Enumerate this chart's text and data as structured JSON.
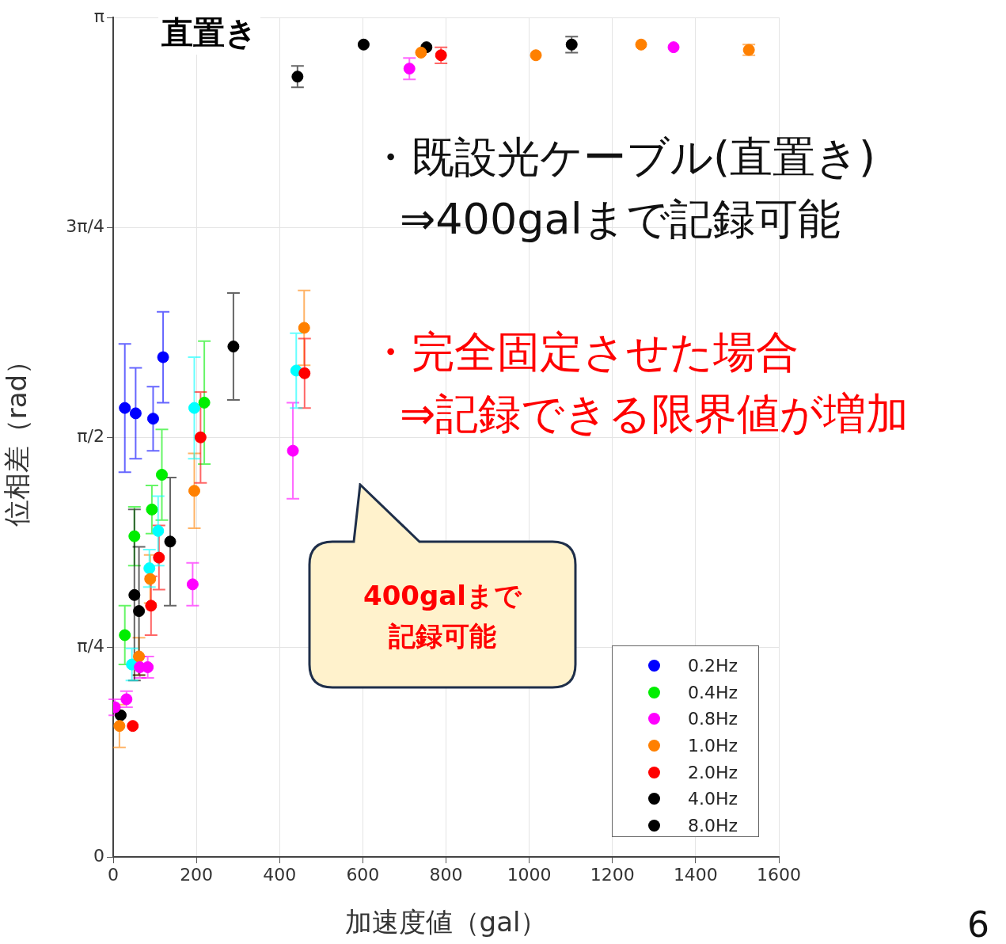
{
  "chart_data": {
    "type": "scatter",
    "title": "直置き",
    "xlabel": "加速度値（gal）",
    "ylabel": "位相差（rad）",
    "xlim": [
      0,
      1600
    ],
    "xticks": [
      0,
      200,
      400,
      600,
      800,
      1000,
      1200,
      1400,
      1600
    ],
    "ylim": [
      0,
      3.1416
    ],
    "yticks": [
      0,
      {
        "value": 0.7854,
        "label": "π/4"
      },
      {
        "value": 1.5708,
        "label": "π/2"
      },
      {
        "value": 2.3562,
        "label": "3π/4"
      },
      {
        "value": 3.1416,
        "label": "π"
      }
    ],
    "grid": true,
    "legend": "bottom right",
    "marker": "circle",
    "annotations": [
      "・既設光ケーブル(直置き)",
      "⇒400galまで記録可能",
      "・完全固定させた場合",
      "⇒記録できる限界値が増加",
      "400galまで",
      "記録可能",
      "6"
    ],
    "series": [
      {
        "name": "0.2Hz",
        "color": "#0000ff",
        "x": [
          28,
          54,
          96,
          120
        ],
        "values": [
          1.68,
          1.66,
          1.64,
          1.87
        ],
        "errors": [
          0.24,
          0.17,
          0.12,
          0.17
        ]
      },
      {
        "name": "0.4Hz",
        "color": "#00ee00",
        "x": [
          28,
          51,
          93,
          117,
          219
        ],
        "values": [
          0.83,
          1.2,
          1.3,
          1.43,
          1.7
        ],
        "errors": [
          0.11,
          0.11,
          0.09,
          0.17,
          0.23
        ]
      },
      {
        "name": "0.8Hz",
        "color": "#ff00ff",
        "x": [
          4,
          32,
          64,
          83,
          191,
          432,
          712,
          1347
        ],
        "values": [
          0.56,
          0.59,
          0.71,
          0.71,
          1.02,
          1.52,
          2.95,
          3.03
        ],
        "errors": [
          0.03,
          0.03,
          0.04,
          0.04,
          0.08,
          0.18,
          0.04,
          null
        ]
      },
      {
        "name": "1.0Hz",
        "color": "#ff8000",
        "x": [
          15,
          62,
          89,
          195,
          459,
          740,
          1016,
          1269,
          1528
        ],
        "values": [
          0.49,
          0.75,
          1.04,
          1.37,
          1.98,
          3.01,
          3.0,
          3.04,
          3.02
        ],
        "errors": [
          0.08,
          0.07,
          0.09,
          0.14,
          0.14,
          null,
          null,
          null,
          0.02
        ]
      },
      {
        "name": "2.0Hz",
        "color": "#ff0000",
        "x": [
          47,
          91,
          110,
          210,
          460,
          788
        ],
        "values": [
          0.49,
          0.94,
          1.12,
          1.57,
          1.81,
          3.0
        ],
        "errors": [
          null,
          0.11,
          0.12,
          0.17,
          0.13,
          0.03
        ]
      },
      {
        "name": "4.0Hz",
        "color": "#000000",
        "x": [
          18,
          51,
          137,
          443,
          753
        ],
        "values": [
          0.53,
          0.98,
          1.18,
          2.92,
          3.03
        ],
        "errors": [
          null,
          0.32,
          0.24,
          0.04,
          null
        ]
      },
      {
        "name": "8.0Hz",
        "color": "#000000",
        "x": [
          62,
          289,
          602,
          1102
        ],
        "values": [
          0.92,
          1.91,
          3.04,
          3.04
        ],
        "errors": [
          0.24,
          0.2,
          null,
          0.03
        ]
      },
      {
        "color": "#00ffff",
        "x": [
          45,
          87,
          108,
          195,
          440
        ],
        "values": [
          0.72,
          1.08,
          1.22,
          1.68,
          1.82
        ],
        "errors": [
          0.06,
          0.07,
          0.13,
          0.19,
          0.14
        ]
      }
    ]
  }
}
